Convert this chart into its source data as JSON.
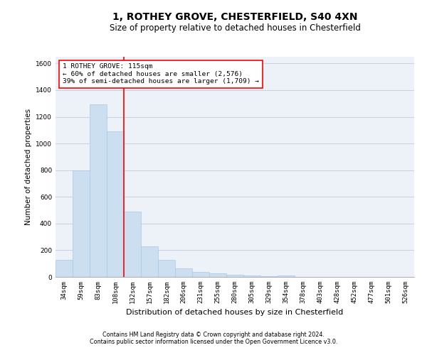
{
  "title1": "1, ROTHEY GROVE, CHESTERFIELD, S40 4XN",
  "title2": "Size of property relative to detached houses in Chesterfield",
  "xlabel": "Distribution of detached houses by size in Chesterfield",
  "ylabel": "Number of detached properties",
  "categories": [
    "34sqm",
    "59sqm",
    "83sqm",
    "108sqm",
    "132sqm",
    "157sqm",
    "182sqm",
    "206sqm",
    "231sqm",
    "255sqm",
    "280sqm",
    "305sqm",
    "329sqm",
    "354sqm",
    "378sqm",
    "403sqm",
    "428sqm",
    "452sqm",
    "477sqm",
    "501sqm",
    "526sqm"
  ],
  "values": [
    130,
    800,
    1295,
    1090,
    490,
    230,
    130,
    65,
    37,
    25,
    15,
    10,
    7,
    10,
    0,
    0,
    0,
    0,
    0,
    0,
    0
  ],
  "bar_color": "#ccdff0",
  "bar_edge_color": "#a8c8e8",
  "red_line_x": 3.5,
  "annotation_line1": "1 ROTHEY GROVE: 115sqm",
  "annotation_line2": "← 60% of detached houses are smaller (2,576)",
  "annotation_line3": "39% of semi-detached houses are larger (1,709) →",
  "annotation_box_color": "white",
  "annotation_box_edge_color": "red",
  "red_line_color": "red",
  "footnote1": "Contains HM Land Registry data © Crown copyright and database right 2024.",
  "footnote2": "Contains public sector information licensed under the Open Government Licence v3.0.",
  "ylim": [
    0,
    1650
  ],
  "yticks": [
    0,
    200,
    400,
    600,
    800,
    1000,
    1200,
    1400,
    1600
  ],
  "grid_color": "#c8d0e0",
  "background_color": "#edf2f9",
  "title1_fontsize": 10,
  "title2_fontsize": 8.5,
  "ylabel_fontsize": 7.5,
  "xlabel_fontsize": 8,
  "tick_fontsize": 6.5,
  "ann_fontsize": 6.8,
  "footnote_fontsize": 5.8
}
